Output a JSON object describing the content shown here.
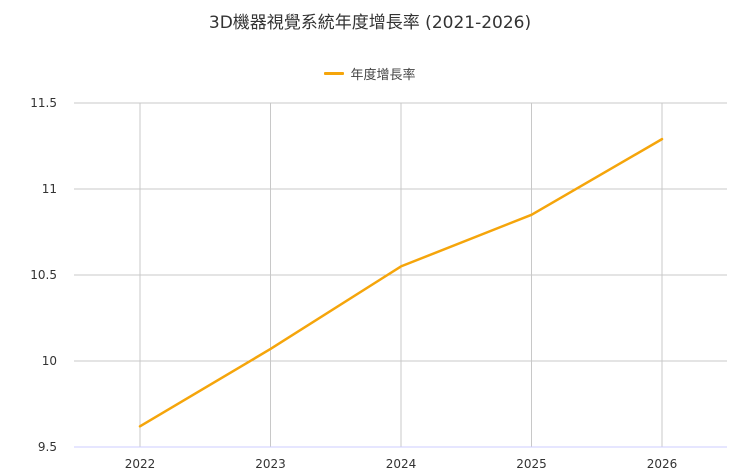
{
  "chart_data": {
    "type": "line",
    "title": "3D機器視覺系統年度增長率 (2021-2026)",
    "xlabel": "",
    "ylabel": "",
    "categories": [
      "2022",
      "2023",
      "2024",
      "2025",
      "2026"
    ],
    "series": [
      {
        "name": "年度增長率",
        "values": [
          9.62,
          10.07,
          10.55,
          10.85,
          11.29
        ],
        "color": "#f5a50b"
      }
    ],
    "ylim": [
      9.5,
      11.5
    ],
    "yticks": [
      {
        "value": 9.5,
        "label": "9.5"
      },
      {
        "value": 10,
        "label": "10"
      },
      {
        "value": 10.5,
        "label": "10.5"
      },
      {
        "value": 11,
        "label": "11"
      },
      {
        "value": 11.5,
        "label": "11.5"
      }
    ],
    "grid": true,
    "legend_position": "top-center"
  },
  "colors": {
    "grid": "#c8c8c8",
    "axis": "#ccccff",
    "text": "#333333"
  }
}
